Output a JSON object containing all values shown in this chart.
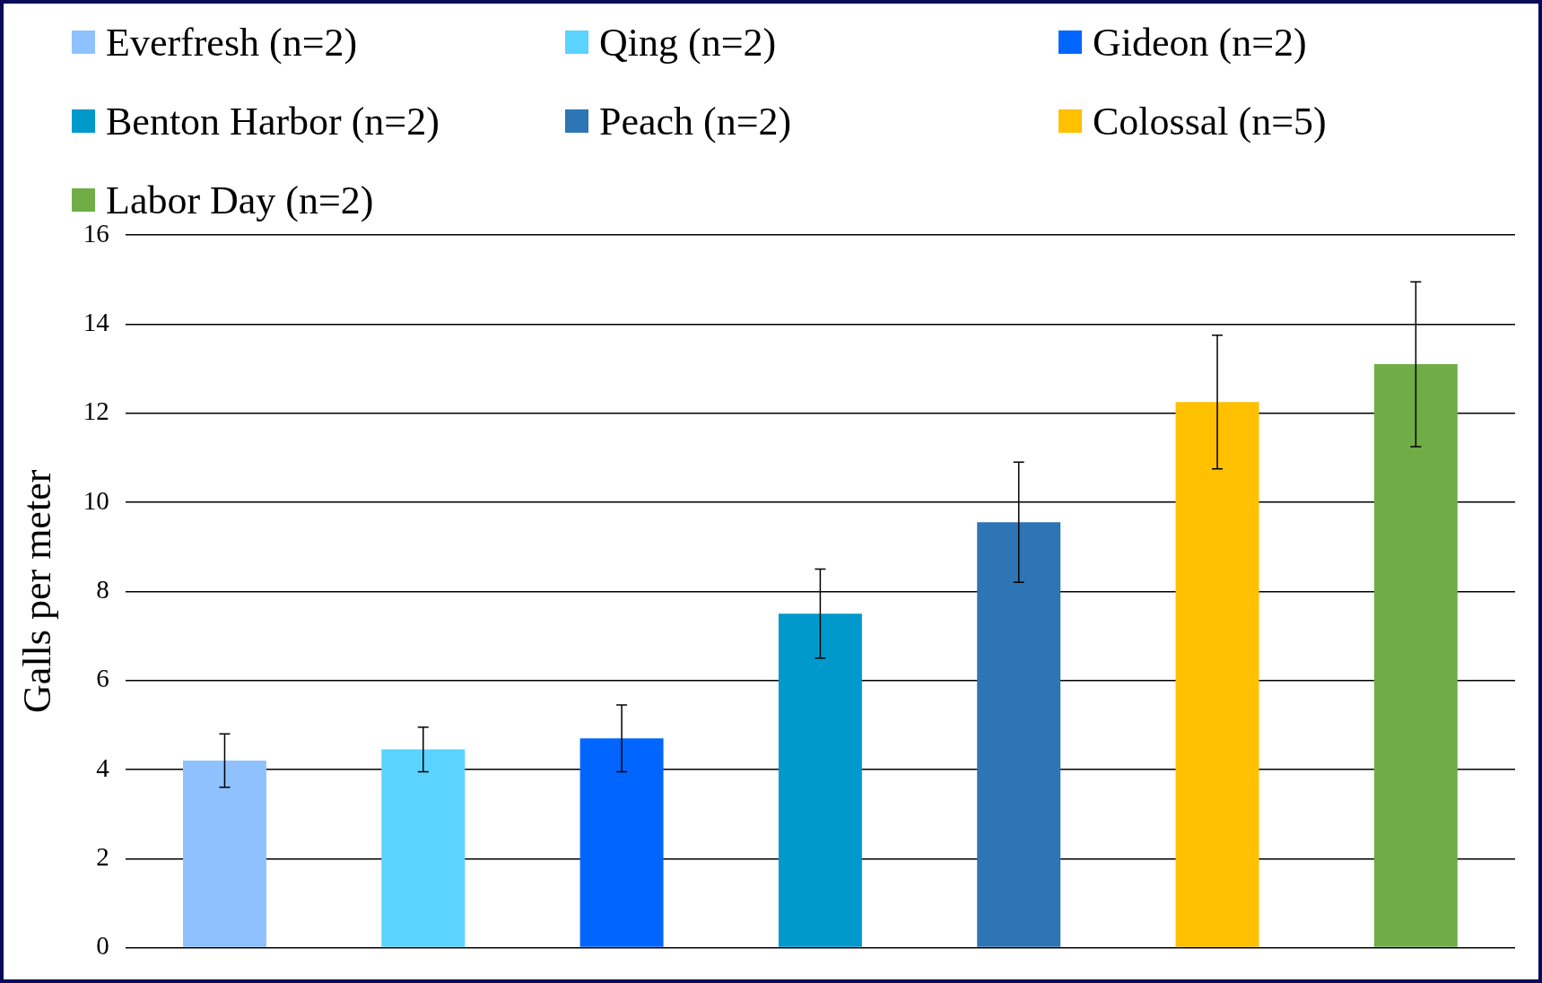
{
  "chart_data": {
    "type": "bar",
    "ylabel": "Galls per meter",
    "categories": [
      null,
      null,
      null,
      null,
      null,
      null,
      null
    ],
    "series": [
      {
        "name": "Everfresh (n=2)",
        "color": "#8fc1ff",
        "values": [
          4.2,
          null,
          null,
          null,
          null,
          null,
          null
        ],
        "errors": [
          0.6,
          null,
          null,
          null,
          null,
          null,
          null
        ]
      },
      {
        "name": "Qing (n=2)",
        "color": "#5ad3ff",
        "values": [
          null,
          4.45,
          null,
          null,
          null,
          null,
          null
        ],
        "errors": [
          null,
          0.5,
          null,
          null,
          null,
          null,
          null
        ]
      },
      {
        "name": "Gideon (n=2)",
        "color": "#0066ff",
        "values": [
          null,
          null,
          4.7,
          null,
          null,
          null,
          null
        ],
        "errors": [
          null,
          null,
          0.75,
          null,
          null,
          null,
          null
        ]
      },
      {
        "name": "Benton Harbor (n=2)",
        "color": "#0099cc",
        "values": [
          null,
          null,
          null,
          7.5,
          null,
          null,
          null
        ],
        "errors": [
          null,
          null,
          null,
          1.0,
          null,
          null,
          null
        ]
      },
      {
        "name": "Peach (n=2)",
        "color": "#2e75b6",
        "values": [
          null,
          null,
          null,
          null,
          9.55,
          null,
          null
        ],
        "errors": [
          null,
          null,
          null,
          null,
          1.35,
          null,
          null
        ]
      },
      {
        "name": "Colossal (n=5)",
        "color": "#ffc000",
        "values": [
          null,
          null,
          null,
          null,
          null,
          12.25,
          null
        ],
        "errors": [
          null,
          null,
          null,
          null,
          null,
          1.5,
          null
        ]
      },
      {
        "name": "Labor Day (n=2)",
        "color": "#70ad47",
        "values": [
          null,
          null,
          null,
          null,
          null,
          null,
          13.1
        ],
        "errors": [
          null,
          null,
          null,
          null,
          null,
          null,
          1.85
        ]
      }
    ],
    "ylim": [
      0,
      16
    ],
    "yticks": [
      0,
      2,
      4,
      6,
      8,
      10,
      12,
      14,
      16
    ],
    "grid": "y",
    "legend": "top",
    "tick_labels": "y"
  }
}
